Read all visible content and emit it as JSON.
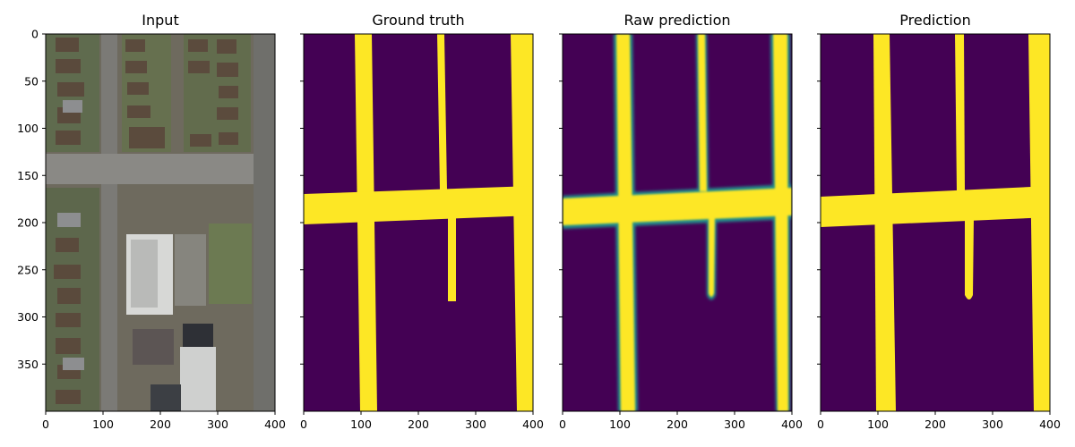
{
  "chart_data": {
    "type": "image-panels",
    "xlim": [
      0,
      400
    ],
    "ylim": [
      400,
      0
    ],
    "x_ticks": [
      0,
      100,
      200,
      300,
      400
    ],
    "y_ticks": [
      0,
      50,
      100,
      150,
      200,
      250,
      300,
      350
    ],
    "colormap": "viridis",
    "colors": {
      "low": "#440154",
      "high": "#fde725",
      "mid": "#21918c"
    },
    "panels": [
      {
        "title": "Input",
        "kind": "aerial-photo"
      },
      {
        "title": "Ground truth",
        "kind": "mask"
      },
      {
        "title": "Raw prediction",
        "kind": "soft-mask"
      },
      {
        "title": "Prediction",
        "kind": "mask"
      }
    ],
    "road_mask": {
      "vertical_roads": [
        {
          "x_top": [
            89,
            118
          ],
          "x_bottom": [
            97,
            128
          ]
        },
        {
          "x_top": [
            233,
            246
          ],
          "x_bottom": [
            238,
            251
          ],
          "y_end": 190
        },
        {
          "x_top": [
            360,
            400
          ],
          "x_bottom": [
            368,
            400
          ]
        }
      ],
      "horizontal_road": {
        "y_left": [
          170,
          202
        ],
        "y_right": [
          165,
          193
        ]
      },
      "stub_road": {
        "x": [
          251,
          263
        ],
        "y": [
          193,
          283
        ]
      }
    }
  }
}
